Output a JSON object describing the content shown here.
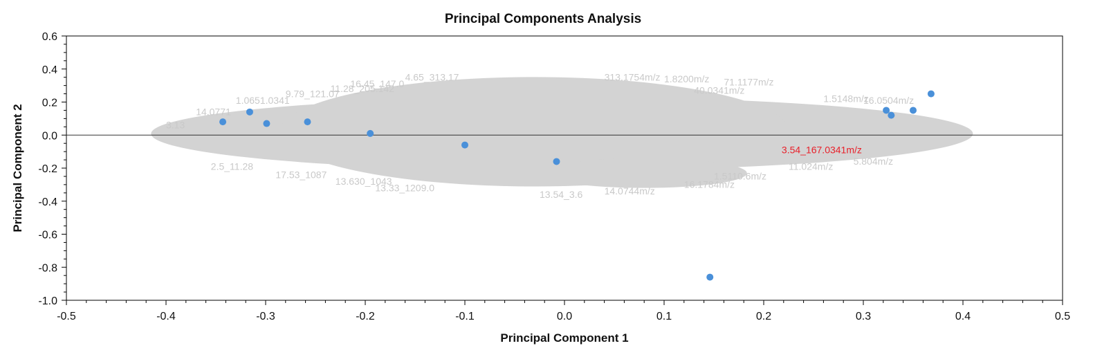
{
  "chart_data": {
    "type": "scatter",
    "title": "Principal Components Analysis",
    "xlabel": "Principal Component 1",
    "ylabel": "Principal Component 2",
    "xlim": [
      -0.5,
      0.5
    ],
    "ylim": [
      -1.0,
      0.6
    ],
    "xticks": [
      "-0.5",
      "-0.4",
      "-0.3",
      "-0.2",
      "-0.1",
      "0.0",
      "0.1",
      "0.2",
      "0.3",
      "0.4",
      "0.5"
    ],
    "yticks": [
      "0.6",
      "0.4",
      "0.2",
      "0.0",
      "-0.2",
      "-0.4",
      "-0.6",
      "-0.8",
      "-1.0"
    ],
    "grid": false,
    "zero_line": true,
    "point_color": "#4a90d9",
    "cloud_color": "#d3d3d3",
    "highlight_color": "#e8202a",
    "points": [
      {
        "x": -0.343,
        "y": 0.08
      },
      {
        "x": -0.316,
        "y": 0.14
      },
      {
        "x": -0.299,
        "y": 0.07
      },
      {
        "x": -0.258,
        "y": 0.08
      },
      {
        "x": -0.195,
        "y": 0.01
      },
      {
        "x": -0.1,
        "y": -0.06
      },
      {
        "x": -0.008,
        "y": -0.16
      },
      {
        "x": 0.146,
        "y": -0.86
      },
      {
        "x": 0.323,
        "y": 0.15
      },
      {
        "x": 0.328,
        "y": 0.12
      },
      {
        "x": 0.35,
        "y": 0.15
      },
      {
        "x": 0.368,
        "y": 0.25
      }
    ],
    "highlighted_label": {
      "text": "3.54_167.0341m/z",
      "x": 0.218,
      "y": -0.09
    },
    "cloud_labels": [
      {
        "text": "16.45_147.0",
        "x": -0.215,
        "y": 0.29
      },
      {
        "text": "4.65_313.17",
        "x": -0.16,
        "y": 0.33
      },
      {
        "text": "313.1754m/z",
        "x": 0.04,
        "y": 0.33
      },
      {
        "text": "1.8200m/z",
        "x": 0.1,
        "y": 0.32
      },
      {
        "text": "71.1177m/z",
        "x": 0.16,
        "y": 0.3
      },
      {
        "text": "11.28_205.142",
        "x": -0.235,
        "y": 0.26
      },
      {
        "text": "9.79_121.07",
        "x": -0.28,
        "y": 0.23
      },
      {
        "text": "1.0651.0341",
        "x": -0.33,
        "y": 0.19
      },
      {
        "text": "40.0341m/z",
        "x": 0.13,
        "y": 0.25
      },
      {
        "text": "1.5148m/z",
        "x": 0.26,
        "y": 0.2
      },
      {
        "text": "16.0504m/z",
        "x": 0.3,
        "y": 0.19
      },
      {
        "text": "14.0771",
        "x": -0.37,
        "y": 0.12
      },
      {
        "text": "3.13",
        "x": -0.4,
        "y": 0.04
      },
      {
        "text": "2.5_11.28",
        "x": -0.355,
        "y": -0.21
      },
      {
        "text": "17.53_1087",
        "x": -0.29,
        "y": -0.26
      },
      {
        "text": "13.630_1043",
        "x": -0.23,
        "y": -0.3
      },
      {
        "text": "13.33_1209.0",
        "x": -0.19,
        "y": -0.34
      },
      {
        "text": "13.54_3.6",
        "x": -0.025,
        "y": -0.38
      },
      {
        "text": "16.1784m/z",
        "x": 0.12,
        "y": -0.32
      },
      {
        "text": "1.5110.6m/z",
        "x": 0.15,
        "y": -0.27
      },
      {
        "text": "11.024m/z",
        "x": 0.225,
        "y": -0.21
      },
      {
        "text": "5.804m/z",
        "x": 0.29,
        "y": -0.18
      },
      {
        "text": "14.0744m/z",
        "x": 0.04,
        "y": -0.36
      }
    ]
  }
}
